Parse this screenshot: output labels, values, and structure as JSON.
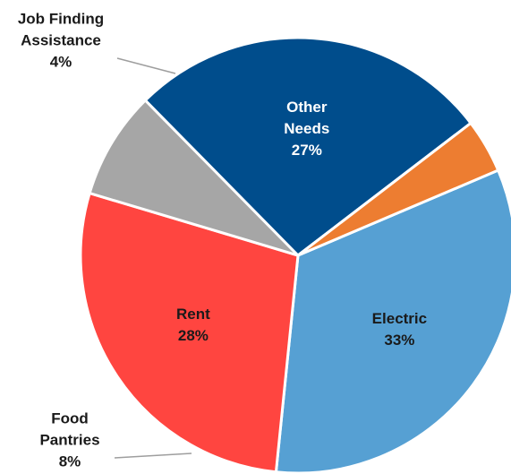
{
  "chart_data": {
    "type": "pie",
    "title": "",
    "start_angle_deg": -23,
    "direction": "clockwise",
    "slices": [
      {
        "label_lines": [
          "Electric"
        ],
        "value": 33,
        "value_label": "33%",
        "color": "#56A0D3",
        "label_color": "#1a1a1a",
        "label_position": "inside"
      },
      {
        "label_lines": [
          "Rent"
        ],
        "value": 28,
        "value_label": "28%",
        "color": "#FF4540",
        "label_color": "#1a1a1a",
        "label_position": "inside"
      },
      {
        "label_lines": [
          "Food",
          "Pantries"
        ],
        "value": 8,
        "value_label": "8%",
        "color": "#A6A6A6",
        "label_color": "#1a1a1a",
        "label_position": "outside"
      },
      {
        "label_lines": [
          "Other",
          "Needs"
        ],
        "value": 27,
        "value_label": "27%",
        "color": "#004D8C",
        "label_color": "#ffffff",
        "label_position": "inside"
      },
      {
        "label_lines": [
          "Job Finding",
          "Assistance"
        ],
        "value": 4,
        "value_label": "4%",
        "color": "#ED7D31",
        "label_color": "#1a1a1a",
        "label_position": "outside"
      }
    ]
  }
}
